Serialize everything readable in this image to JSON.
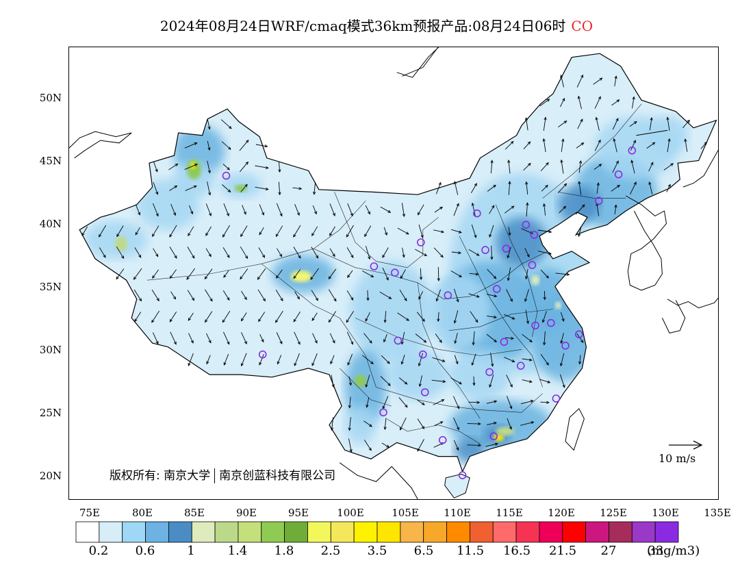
{
  "title": {
    "text": "2024年08月24日WRF/cmaq模式36km预报产品:08月24日06时",
    "pollutant": "CO",
    "pollutant_color": "#e8262c"
  },
  "map": {
    "projection": "lat-lon",
    "lon_range": [
      72.5,
      135
    ],
    "lat_range": [
      18,
      54
    ],
    "lat_ticks": [
      "50N",
      "45N",
      "40N",
      "35N",
      "30N",
      "25N",
      "20N"
    ],
    "lon_ticks": [
      "75E",
      "80E",
      "85E",
      "90E",
      "95E",
      "100E",
      "105E",
      "110E",
      "115E",
      "120E",
      "125E",
      "130E",
      "135E"
    ],
    "copyright_left": "版权所有: 南京大学",
    "copyright_right": "南京创蓝科技有限公司",
    "wind_reference": "10 m/s",
    "field_colors": [
      "#d8eef9",
      "#a6d7f3",
      "#6ab3e0",
      "#4a8ec6",
      "#e2ecbd",
      "#bfd98b",
      "#8ec95a",
      "#f3f573",
      "#ffe600"
    ],
    "station_marker_color": "#8a2be2"
  },
  "colorbar": {
    "colors": [
      "#ffffff",
      "#d7eef9",
      "#9fd8f6",
      "#6cb2e2",
      "#4a8dc4",
      "#deebbd",
      "#bcd98a",
      "#c4e07a",
      "#8fcb52",
      "#6fad38",
      "#f2f85c",
      "#f4e85a",
      "#fff200",
      "#ffe600",
      "#f7b54a",
      "#f7a82a",
      "#ff8a00",
      "#f06030",
      "#ff6a6a",
      "#f53454",
      "#ee0058",
      "#ff0000",
      "#cc1680",
      "#a62c5c",
      "#9a38c8",
      "#8a2be2"
    ],
    "labels": [
      "0.2",
      "0.6",
      "1",
      "1.4",
      "1.8",
      "2.5",
      "3.5",
      "6.5",
      "11.5",
      "16.5",
      "21.5",
      "27",
      "33"
    ],
    "unit": "(mg/m3)"
  },
  "stations": [
    [
      87.6,
      43.8
    ],
    [
      91.1,
      29.6
    ],
    [
      101.8,
      36.6
    ],
    [
      103.8,
      36.1
    ],
    [
      106.3,
      38.5
    ],
    [
      111.7,
      40.8
    ],
    [
      116.4,
      39.9
    ],
    [
      117.2,
      39.1
    ],
    [
      114.5,
      38.0
    ],
    [
      112.5,
      37.9
    ],
    [
      117.0,
      36.7
    ],
    [
      113.6,
      34.8
    ],
    [
      108.9,
      34.3
    ],
    [
      104.1,
      30.7
    ],
    [
      106.5,
      29.6
    ],
    [
      106.7,
      26.6
    ],
    [
      102.7,
      25.0
    ],
    [
      108.4,
      22.8
    ],
    [
      110.3,
      20.0
    ],
    [
      113.3,
      23.1
    ],
    [
      114.3,
      30.6
    ],
    [
      112.9,
      28.2
    ],
    [
      115.9,
      28.7
    ],
    [
      119.3,
      26.1
    ],
    [
      120.2,
      30.3
    ],
    [
      121.5,
      31.2
    ],
    [
      118.8,
      32.1
    ],
    [
      117.3,
      31.9
    ],
    [
      123.4,
      41.8
    ],
    [
      125.3,
      43.9
    ],
    [
      126.6,
      45.8
    ]
  ]
}
